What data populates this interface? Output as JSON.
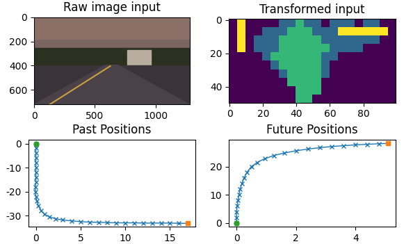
{
  "chart_data": [
    {
      "type": "image",
      "title": "Raw image input",
      "xlim": [
        0,
        1280
      ],
      "ylim": [
        720,
        0
      ],
      "xticks": [
        0,
        500,
        1000
      ],
      "yticks": [
        0,
        200,
        400,
        600
      ]
    },
    {
      "type": "heatmap",
      "title": "Transformed input",
      "color": "viridis",
      "xlim": [
        -0.5,
        99.5
      ],
      "ylim": [
        49.5,
        -0.5
      ],
      "xticks": [
        0,
        20,
        40,
        60,
        80
      ],
      "yticks": [
        0,
        20,
        40
      ],
      "cells": [
        [
          0,
          3,
          0,
          0,
          0,
          0,
          1,
          1,
          2,
          1,
          1,
          0,
          1,
          1,
          1,
          0,
          1,
          1,
          0,
          0
        ],
        [
          0,
          3,
          0,
          0,
          1,
          1,
          1,
          2,
          2,
          2,
          1,
          1,
          1,
          3,
          3,
          3,
          3,
          3,
          3,
          0
        ],
        [
          0,
          3,
          0,
          1,
          1,
          1,
          2,
          2,
          2,
          2,
          2,
          1,
          1,
          1,
          1,
          1,
          1,
          1,
          0,
          0
        ],
        [
          0,
          3,
          0,
          1,
          1,
          1,
          2,
          2,
          2,
          2,
          2,
          2,
          1,
          1,
          1,
          1,
          0,
          0,
          0,
          0
        ],
        [
          0,
          0,
          0,
          0,
          1,
          2,
          2,
          2,
          2,
          2,
          2,
          1,
          1,
          0,
          0,
          0,
          0,
          0,
          0,
          0
        ],
        [
          0,
          0,
          0,
          0,
          0,
          1,
          2,
          2,
          2,
          2,
          2,
          1,
          0,
          0,
          0,
          0,
          0,
          0,
          0,
          0
        ],
        [
          0,
          0,
          0,
          0,
          0,
          0,
          1,
          2,
          2,
          2,
          2,
          1,
          0,
          0,
          0,
          0,
          0,
          0,
          0,
          0
        ],
        [
          0,
          0,
          0,
          0,
          0,
          0,
          0,
          2,
          2,
          2,
          2,
          0,
          0,
          0,
          0,
          0,
          0,
          0,
          0,
          0
        ],
        [
          0,
          0,
          0,
          0,
          0,
          0,
          0,
          0,
          2,
          2,
          2,
          0,
          0,
          0,
          0,
          0,
          0,
          0,
          0,
          0
        ],
        [
          0,
          0,
          0,
          0,
          0,
          0,
          0,
          0,
          2,
          2,
          0,
          0,
          0,
          0,
          0,
          0,
          0,
          0,
          0,
          0
        ]
      ]
    },
    {
      "type": "line",
      "title": "Past Positions",
      "xlim": [
        -0.85,
        17.85
      ],
      "ylim": [
        -34.7,
        1.7
      ],
      "xticks": [
        0,
        5,
        10,
        15
      ],
      "yticks": [
        -30,
        -20,
        -10,
        0
      ],
      "series": [
        {
          "color": "#1f77b4",
          "marker": "x",
          "line_style": "solid",
          "x": [
            0,
            0,
            0,
            0,
            0,
            0,
            0,
            0,
            0,
            -0.05,
            -0.05,
            0,
            0.1,
            0.3,
            0.6,
            1.0,
            1.5,
            2.2,
            3.0,
            4.0,
            5.0,
            6.0,
            7.0,
            8.0,
            9.0,
            10.0,
            11.0,
            12.0,
            13.0,
            14.0,
            15.0,
            16.0,
            17.0
          ],
          "values": [
            0,
            -2,
            -4,
            -6,
            -8,
            -10,
            -12,
            -14,
            -16,
            -18,
            -20,
            -22,
            -24,
            -26,
            -28,
            -29.5,
            -30.5,
            -31.3,
            -31.8,
            -32.2,
            -32.5,
            -32.7,
            -32.8,
            -32.9,
            -33,
            -33,
            -33,
            -33.1,
            -33.1,
            -33.1,
            -33.1,
            -33.2,
            -33.2
          ]
        },
        {
          "color": "#2ca02c",
          "marker": "o",
          "line_style": "none",
          "x": [
            0
          ],
          "values": [
            0
          ]
        },
        {
          "color": "#ff7f0e",
          "marker": "s",
          "line_style": "none",
          "x": [
            17.0
          ],
          "values": [
            -33.2
          ]
        }
      ]
    },
    {
      "type": "line",
      "title": "Future Positions",
      "xlim": [
        -0.26,
        5.36
      ],
      "ylim": [
        -1.4,
        29.6
      ],
      "xticks": [
        0,
        2,
        4
      ],
      "yticks": [
        0,
        10,
        20
      ],
      "series": [
        {
          "color": "#1f77b4",
          "marker": "x",
          "line_style": "solid",
          "x": [
            0,
            0,
            0,
            0.02,
            0.05,
            0.08,
            0.12,
            0.18,
            0.25,
            0.35,
            0.5,
            0.7,
            0.95,
            1.25,
            1.6,
            2.0,
            2.4,
            2.8,
            3.2,
            3.6,
            4.0,
            4.4,
            4.8,
            5.1
          ],
          "values": [
            0,
            2,
            4,
            6,
            8,
            10,
            12,
            14,
            16,
            18,
            20,
            21.5,
            22.8,
            23.9,
            24.8,
            25.6,
            26.2,
            26.7,
            27.1,
            27.4,
            27.7,
            27.9,
            28.1,
            28.2
          ]
        },
        {
          "color": "#2ca02c",
          "marker": "o",
          "line_style": "none",
          "x": [
            0
          ],
          "values": [
            0
          ]
        },
        {
          "color": "#ff7f0e",
          "marker": "s",
          "line_style": "none",
          "x": [
            5.1
          ],
          "values": [
            28.2
          ]
        }
      ]
    }
  ]
}
